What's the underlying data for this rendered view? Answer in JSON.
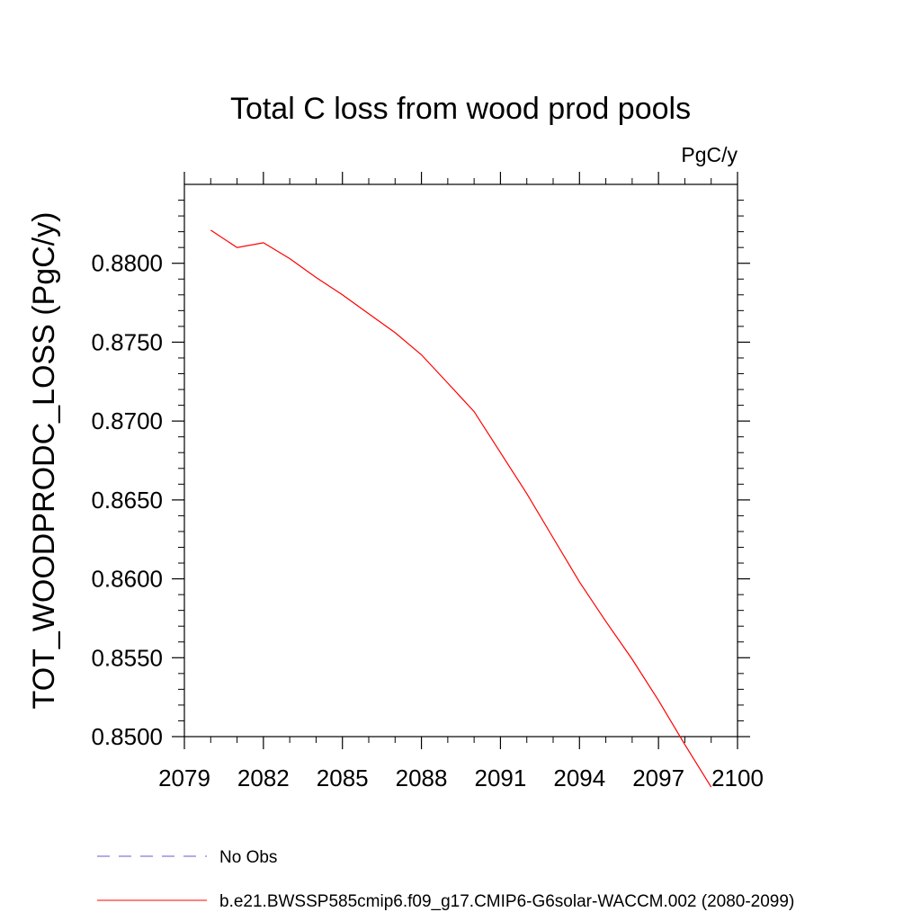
{
  "chart_data": {
    "type": "line",
    "title": "Total C loss from wood prod pools",
    "units_label": "PgC/y",
    "ylabel": "TOT_WOODPRODC_LOSS  (PgC/y)",
    "xlabel": "",
    "xlim": [
      2079,
      2100
    ],
    "ylim": [
      0.85,
      0.885
    ],
    "x_ticks": [
      2079,
      2082,
      2085,
      2088,
      2091,
      2094,
      2097,
      2100
    ],
    "x_tick_labels": [
      "2079",
      "2082",
      "2085",
      "2088",
      "2091",
      "2094",
      "2097",
      "2100"
    ],
    "y_ticks": [
      0.85,
      0.855,
      0.86,
      0.865,
      0.87,
      0.875,
      0.88
    ],
    "y_tick_labels": [
      "0.8500",
      "0.8550",
      "0.8600",
      "0.8650",
      "0.8700",
      "0.8750",
      "0.8800"
    ],
    "grid": false,
    "legend_placement": "bottom",
    "series": [
      {
        "name": "b.e21.BWSSP585cmip6.f09_g17.CMIP6-G6solar-WACCM.002 (2080-2099)",
        "color": "#ff0000",
        "style": "solid",
        "x": [
          2080,
          2081,
          2082,
          2083,
          2084,
          2085,
          2086,
          2087,
          2088,
          2089,
          2090,
          2091,
          2092,
          2093,
          2094,
          2095,
          2096,
          2097,
          2098,
          2099
        ],
        "y": [
          0.8821,
          0.881,
          0.8813,
          0.8803,
          0.8791,
          0.878,
          0.8768,
          0.8756,
          0.8742,
          0.8724,
          0.8706,
          0.868,
          0.8654,
          0.8626,
          0.8598,
          0.8573,
          0.8549,
          0.8523,
          0.8495,
          0.8468
        ]
      }
    ],
    "legend": [
      {
        "label": "No Obs",
        "color": "#6a5acd",
        "style": "dashed"
      },
      {
        "label": "b.e21.BWSSP585cmip6.f09_g17.CMIP6-G6solar-WACCM.002 (2080-2099)",
        "color": "#ff0000",
        "style": "solid"
      }
    ]
  }
}
